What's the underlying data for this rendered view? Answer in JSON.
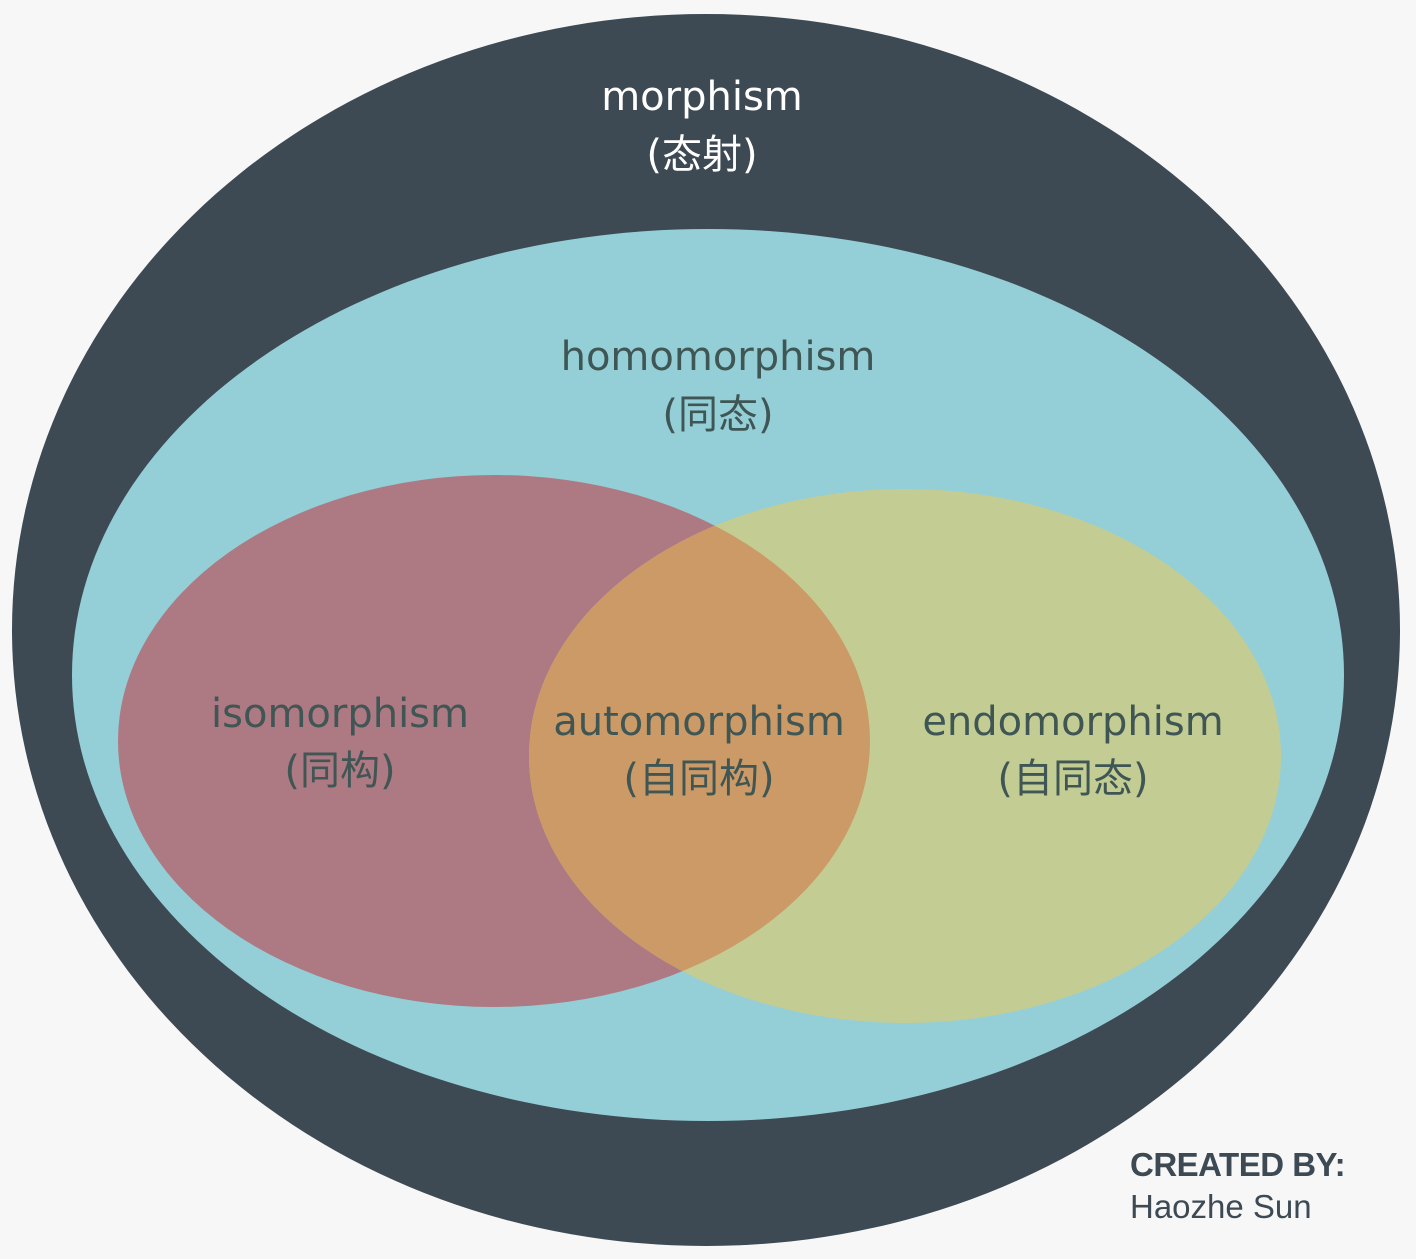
{
  "colors": {
    "background": "#f7f7f7",
    "morphism_fill": "#3d4a54",
    "homomorphism_fill": "#94ced6",
    "isomorphism_fill": "#ad7983",
    "endomorphism_fill": "#c3cd93",
    "automorphism_fill": "#cc9a66",
    "light_text": "#ffffff",
    "dark_text": "#3f5655"
  },
  "sets": {
    "morphism": {
      "label": "morphism",
      "label_cn": "(态射)"
    },
    "homomorphism": {
      "label": "homomorphism",
      "label_cn": "(同态)"
    },
    "isomorphism": {
      "label": "isomorphism",
      "label_cn": "(同构)"
    },
    "automorphism": {
      "label": "automorphism",
      "label_cn": "(自同构)"
    },
    "endomorphism": {
      "label": "endomorphism",
      "label_cn": "(自同态)"
    }
  },
  "credit": {
    "heading": "CREATED BY:",
    "name": "Haozhe Sun"
  }
}
